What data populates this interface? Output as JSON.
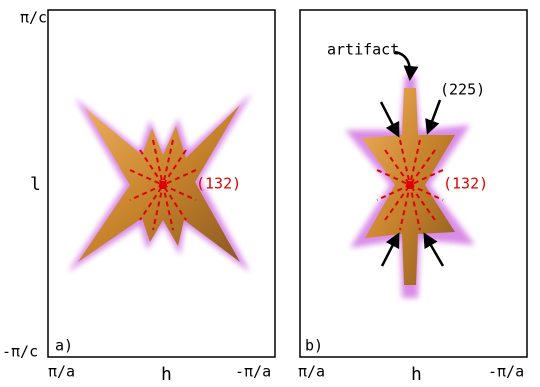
{
  "panel_a": {
    "y_top": "π/c",
    "y_axis": "l",
    "y_bottom": "-π/c",
    "label": "a)",
    "x_left": "π/a",
    "x_axis": "h",
    "x_right": "-π/a",
    "peak": "(132)"
  },
  "panel_b": {
    "label": "b)",
    "x_left": "π/a",
    "x_axis": "h",
    "x_right": "-π/a",
    "artifact": "artifact",
    "peak_top": "(225)",
    "peak": "(132)"
  }
}
